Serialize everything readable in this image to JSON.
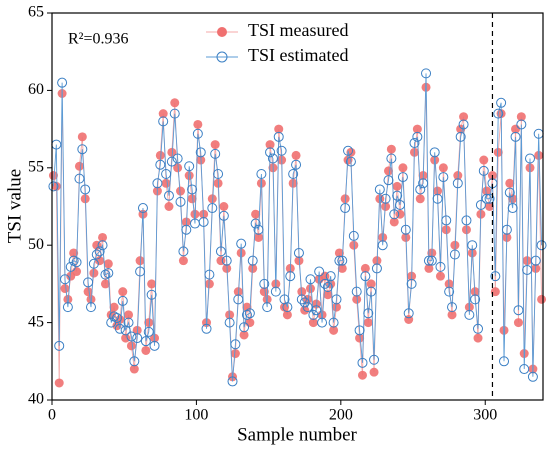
{
  "chart_data": {
    "type": "line",
    "xlabel": "Sample number",
    "ylabel": "TSI value",
    "annotation": "R²=0.936",
    "xlim": [
      0,
      340
    ],
    "xticks": [
      0,
      100,
      200,
      300
    ],
    "ylim": [
      40,
      65
    ],
    "yticks": [
      40,
      45,
      50,
      55,
      60,
      65
    ],
    "vline": 305,
    "x": [
      1,
      3,
      5,
      7,
      9,
      11,
      13,
      15,
      17,
      19,
      21,
      23,
      25,
      27,
      29,
      31,
      33,
      35,
      37,
      39,
      41,
      43,
      45,
      47,
      49,
      51,
      53,
      55,
      57,
      59,
      61,
      63,
      65,
      67,
      69,
      71,
      73,
      75,
      77,
      79,
      81,
      83,
      85,
      87,
      89,
      91,
      93,
      95,
      97,
      99,
      101,
      103,
      105,
      107,
      109,
      111,
      113,
      115,
      117,
      119,
      121,
      123,
      125,
      127,
      129,
      131,
      133,
      135,
      137,
      139,
      141,
      143,
      145,
      147,
      149,
      151,
      153,
      155,
      157,
      159,
      161,
      163,
      165,
      167,
      169,
      171,
      173,
      175,
      177,
      179,
      181,
      183,
      185,
      187,
      189,
      191,
      193,
      195,
      197,
      199,
      201,
      203,
      205,
      207,
      209,
      211,
      213,
      215,
      217,
      219,
      221,
      223,
      225,
      227,
      229,
      231,
      233,
      235,
      237,
      239,
      241,
      243,
      245,
      247,
      249,
      251,
      253,
      255,
      257,
      259,
      261,
      263,
      265,
      267,
      269,
      271,
      273,
      275,
      277,
      279,
      281,
      283,
      285,
      287,
      289,
      291,
      293,
      295,
      297,
      299,
      301,
      303,
      305,
      307,
      309,
      311,
      313,
      315,
      317,
      319,
      321,
      323,
      325,
      327,
      329,
      331,
      333,
      335,
      337,
      339
    ],
    "series": [
      {
        "name": "TSI measured",
        "color": "#f07070",
        "line_color": "#f4a8a8",
        "marker": "filled",
        "values": [
          54.5,
          53.8,
          41.1,
          59.8,
          47.2,
          46.5,
          48.0,
          49.5,
          48.3,
          55.1,
          57.0,
          53.0,
          47.0,
          46.5,
          48.2,
          50.0,
          49.0,
          50.5,
          47.5,
          48.8,
          45.5,
          46.0,
          44.8,
          45.2,
          47.0,
          44.0,
          45.5,
          43.5,
          42.0,
          44.5,
          49.0,
          52.0,
          43.2,
          45.0,
          47.5,
          44.0,
          53.5,
          55.8,
          58.5,
          54.0,
          52.5,
          56.0,
          59.2,
          55.0,
          53.5,
          49.0,
          51.5,
          54.5,
          53.0,
          52.0,
          57.8,
          55.5,
          52.0,
          45.0,
          47.5,
          53.0,
          56.5,
          54.0,
          49.0,
          52.5,
          48.5,
          45.5,
          41.5,
          43.0,
          47.0,
          49.5,
          44.2,
          46.0,
          45.0,
          48.5,
          52.0,
          50.5,
          54.0,
          47.0,
          46.5,
          56.5,
          55.0,
          47.5,
          57.5,
          55.5,
          46.0,
          45.5,
          48.5,
          54.0,
          55.8,
          49.0,
          47.0,
          45.8,
          46.5,
          47.2,
          45.0,
          46.2,
          47.8,
          45.5,
          48.0,
          46.8,
          47.5,
          44.5,
          46.0,
          49.5,
          48.5,
          53.0,
          55.5,
          56.0,
          50.0,
          46.5,
          44.0,
          41.6,
          48.5,
          45.0,
          47.5,
          41.8,
          49.0,
          53.0,
          50.5,
          52.5,
          54.8,
          56.2,
          51.5,
          53.8,
          52.0,
          55.0,
          50.5,
          45.2,
          48.0,
          56.0,
          57.5,
          53.0,
          54.5,
          60.2,
          48.5,
          49.5,
          55.5,
          53.5,
          48.0,
          55.0,
          51.0,
          47.5,
          45.5,
          50.0,
          54.5,
          57.5,
          58.3,
          51.0,
          46.0,
          49.5,
          47.0,
          44.0,
          52.0,
          55.5,
          53.5,
          52.5,
          54.5,
          47.0,
          56.0,
          58.5,
          44.5,
          50.5,
          54.0,
          53.0,
          57.5,
          45.0,
          58.3,
          43.0,
          49.0,
          55.0,
          42.0,
          48.5,
          55.8,
          46.5
        ]
      },
      {
        "name": "TSI estimated",
        "color": "#3a7fc4",
        "line_color": "#5b9bd5",
        "marker": "open",
        "values": [
          53.8,
          56.5,
          43.5,
          60.5,
          47.8,
          46.0,
          48.6,
          49.0,
          48.9,
          54.3,
          56.2,
          53.6,
          47.6,
          46.0,
          48.8,
          49.4,
          49.6,
          50.0,
          48.1,
          48.2,
          45.0,
          45.4,
          45.3,
          44.6,
          46.4,
          44.5,
          45.0,
          44.1,
          42.5,
          44.0,
          48.3,
          52.4,
          43.8,
          44.4,
          46.8,
          43.5,
          54.0,
          55.2,
          58.0,
          54.6,
          53.2,
          55.4,
          58.5,
          55.6,
          52.8,
          49.6,
          51.0,
          55.1,
          53.6,
          51.4,
          57.2,
          56.0,
          51.5,
          44.6,
          48.1,
          52.4,
          55.9,
          54.6,
          49.6,
          51.9,
          49.0,
          45.0,
          41.2,
          43.6,
          46.5,
          50.1,
          44.7,
          45.5,
          45.6,
          49.0,
          51.4,
          51.0,
          54.6,
          47.5,
          46.0,
          56.0,
          55.6,
          47.0,
          57.0,
          56.1,
          46.5,
          46.0,
          48.0,
          54.6,
          55.2,
          49.5,
          46.5,
          46.3,
          46.0,
          47.8,
          45.5,
          45.8,
          48.3,
          45.0,
          47.5,
          47.3,
          48.0,
          45.0,
          46.5,
          49.0,
          49.0,
          52.4,
          56.1,
          55.4,
          50.6,
          47.0,
          44.5,
          42.4,
          48.0,
          45.6,
          47.0,
          42.6,
          48.5,
          53.6,
          50.0,
          53.0,
          54.2,
          55.6,
          52.0,
          53.2,
          52.6,
          54.4,
          51.0,
          45.6,
          47.5,
          56.6,
          57.0,
          53.6,
          54.0,
          61.1,
          49.0,
          49.0,
          56.0,
          53.0,
          48.6,
          54.4,
          51.6,
          47.0,
          46.0,
          49.4,
          54.0,
          57.0,
          57.8,
          51.6,
          45.5,
          50.0,
          46.5,
          44.6,
          52.6,
          54.8,
          53.0,
          53.0,
          54.0,
          48.0,
          58.5,
          59.2,
          42.5,
          51.0,
          53.4,
          52.4,
          57.0,
          45.8,
          57.8,
          42.0,
          48.4,
          55.6,
          41.5,
          49.0,
          57.2,
          50.0
        ]
      }
    ]
  }
}
